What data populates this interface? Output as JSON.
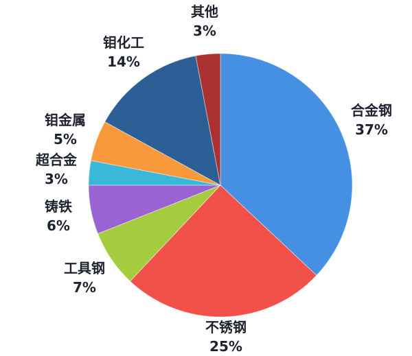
{
  "chart_data": {
    "type": "pie",
    "title": "",
    "direction": "clockwise",
    "start_angle_deg": 0,
    "labels_position": "outside",
    "legend_position": "none",
    "background": "#ffffff",
    "label_color": "#1e222e",
    "slices": [
      {
        "label": "合金钢",
        "value": 37,
        "percent_label": "37%",
        "color": "#4590e2"
      },
      {
        "label": "不锈钢",
        "value": 25,
        "percent_label": "25%",
        "color": "#f25149"
      },
      {
        "label": "工具钢",
        "value": 7,
        "percent_label": "7%",
        "color": "#a5cb3e"
      },
      {
        "label": "铸铁",
        "value": 6,
        "percent_label": "6%",
        "color": "#9a63d4"
      },
      {
        "label": "超合金",
        "value": 3,
        "percent_label": "3%",
        "color": "#3ab8da"
      },
      {
        "label": "钼金属",
        "value": 5,
        "percent_label": "5%",
        "color": "#f89a3c"
      },
      {
        "label": "钼化工",
        "value": 14,
        "percent_label": "14%",
        "color": "#2c5f95"
      },
      {
        "label": "其他",
        "value": 3,
        "percent_label": "3%",
        "color": "#ab3230"
      }
    ]
  }
}
